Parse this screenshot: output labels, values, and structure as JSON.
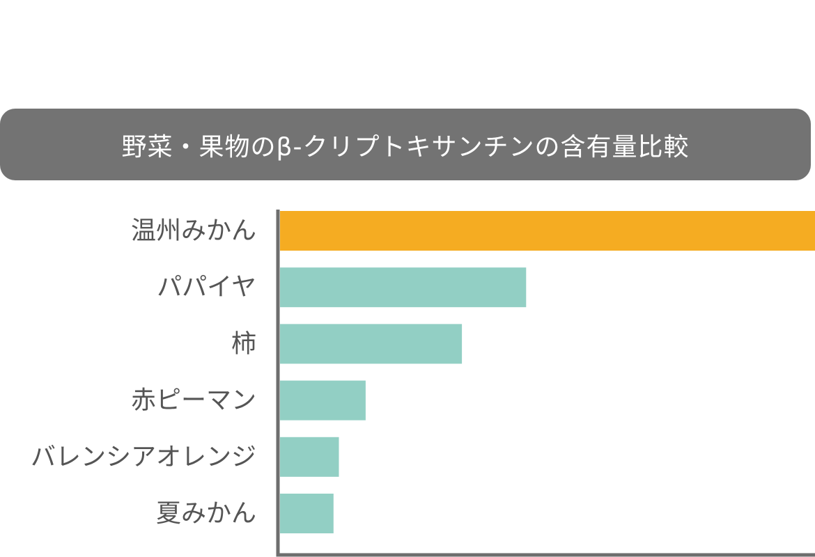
{
  "chart_data": {
    "type": "bar",
    "orientation": "horizontal",
    "title": "野菜・果物のβ-クリプトキサンチンの含有量比較",
    "categories": [
      "温州みかん",
      "パパイヤ",
      "柿",
      "赤ピーマン",
      "バレンシアオレンジ",
      "夏みかん"
    ],
    "values": [
      100,
      46,
      34,
      16,
      11,
      10
    ],
    "xlim": [
      0,
      100
    ],
    "xlabel": "",
    "ylabel": "",
    "grid": false,
    "legend": "none",
    "colors": {
      "highlight": "#F5AC22",
      "default": "#92CFC4",
      "axis": "#6E6E6E",
      "banner": "#737373"
    },
    "highlight_index": 0
  }
}
